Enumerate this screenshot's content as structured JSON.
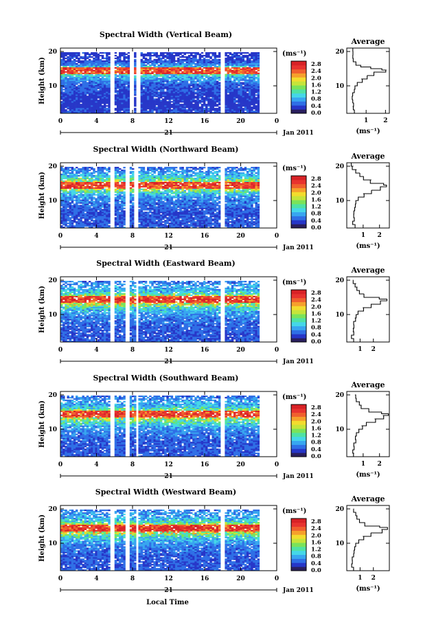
{
  "colors": {
    "scale": [
      "#2a1f5e",
      "#2636c8",
      "#2f6fe6",
      "#38a6f0",
      "#45d7e8",
      "#4fe2a4",
      "#7be35a",
      "#c6e43a",
      "#f3dc2e",
      "#f6a02c",
      "#f0602e",
      "#e8332f",
      "#d82226"
    ],
    "gap": "#ffffff",
    "axis": "#000000"
  },
  "chart_data": [
    {
      "type": "heatmap",
      "title": "Spectral Width (Vertical Beam)",
      "xlabel": "",
      "ylabel": "Height (km)",
      "x_ticks": [
        "0",
        "4",
        "8",
        "12",
        "16",
        "20",
        "0"
      ],
      "y_ticks": [
        "10",
        "20"
      ],
      "xlim": [
        0,
        24
      ],
      "ylim": [
        2,
        21
      ],
      "date_label": "Jan 2011",
      "day_label": "21",
      "colorbar": {
        "unit": "(ms⁻¹)",
        "ticks": [
          "2.8",
          "2.4",
          "2.0",
          "1.6",
          "1.2",
          "0.8",
          "0.4",
          "0.0"
        ],
        "range": [
          0,
          3.0
        ]
      },
      "gaps_hours": [
        [
          5.6,
          6.0
        ],
        [
          7.8,
          8.1
        ],
        [
          8.5,
          8.9
        ],
        [
          17.7,
          18.2
        ],
        [
          22.2,
          24
        ]
      ],
      "average": {
        "title": "Average",
        "xlabel": "(ms⁻¹)",
        "x_ticks": [
          "1",
          "2"
        ],
        "xlim": [
          0,
          2.2
        ],
        "y_ticks": [
          "10",
          "20"
        ],
        "profile": [
          [
            2,
            0.4
          ],
          [
            3,
            0.35
          ],
          [
            4,
            0.3
          ],
          [
            5,
            0.3
          ],
          [
            6,
            0.32
          ],
          [
            7,
            0.32
          ],
          [
            8,
            0.35
          ],
          [
            9,
            0.4
          ],
          [
            10,
            0.45
          ],
          [
            11,
            0.55
          ],
          [
            12,
            0.75
          ],
          [
            13,
            1.05
          ],
          [
            14,
            1.45
          ],
          [
            14.6,
            2.05
          ],
          [
            15,
            1.8
          ],
          [
            15.5,
            1.2
          ],
          [
            16,
            0.7
          ],
          [
            17,
            0.45
          ],
          [
            18,
            0.35
          ],
          [
            19,
            0.3
          ],
          [
            20,
            0.3
          ],
          [
            21,
            0.35
          ]
        ]
      }
    },
    {
      "type": "heatmap",
      "title": "Spectral Width (Northward Beam)",
      "xlabel": "",
      "ylabel": "Height (km)",
      "x_ticks": [
        "0",
        "4",
        "8",
        "12",
        "16",
        "20",
        "0"
      ],
      "y_ticks": [
        "10",
        "20"
      ],
      "xlim": [
        0,
        24
      ],
      "ylim": [
        2,
        21
      ],
      "date_label": "Jan 2011",
      "day_label": "21",
      "colorbar": {
        "unit": "(ms⁻¹)",
        "ticks": [
          "2.8",
          "2.4",
          "2.0",
          "1.6",
          "1.2",
          "0.8",
          "0.4",
          "0.0"
        ],
        "range": [
          0,
          3.0
        ]
      },
      "gaps_hours": [
        [
          5.6,
          6.0
        ],
        [
          7.3,
          7.7
        ],
        [
          8.2,
          8.6
        ],
        [
          17.7,
          18.2
        ],
        [
          22.2,
          24
        ]
      ],
      "average": {
        "title": "Average",
        "xlabel": "(ms⁻¹)",
        "x_ticks": [
          "1",
          "2"
        ],
        "xlim": [
          0,
          2.6
        ],
        "y_ticks": [
          "10",
          "20"
        ],
        "profile": [
          [
            2,
            0.5
          ],
          [
            3,
            0.45
          ],
          [
            4,
            0.4
          ],
          [
            5,
            0.45
          ],
          [
            6,
            0.4
          ],
          [
            7,
            0.45
          ],
          [
            8,
            0.5
          ],
          [
            9,
            0.55
          ],
          [
            10,
            0.6
          ],
          [
            11,
            0.7
          ],
          [
            12,
            1.0
          ],
          [
            13,
            1.5
          ],
          [
            14,
            2.1
          ],
          [
            14.5,
            2.45
          ],
          [
            15,
            2.2
          ],
          [
            16,
            1.5
          ],
          [
            17,
            1.0
          ],
          [
            18,
            0.8
          ],
          [
            19,
            0.6
          ],
          [
            20,
            0.4
          ],
          [
            21,
            0.3
          ]
        ]
      }
    },
    {
      "type": "heatmap",
      "title": "Spectral Width (Eastward Beam)",
      "xlabel": "",
      "ylabel": "Height (km)",
      "x_ticks": [
        "0",
        "4",
        "8",
        "12",
        "16",
        "20",
        "0"
      ],
      "y_ticks": [
        "10",
        "20"
      ],
      "xlim": [
        0,
        24
      ],
      "ylim": [
        2,
        21
      ],
      "date_label": "Jan 2011",
      "day_label": "21",
      "colorbar": {
        "unit": "(ms⁻¹)",
        "ticks": [
          "2.8",
          "2.4",
          "2.0",
          "1.6",
          "1.2",
          "0.8",
          "0.4",
          "0.0"
        ],
        "range": [
          0,
          3.0
        ]
      },
      "gaps_hours": [
        [
          5.6,
          6.0
        ],
        [
          7.3,
          7.7
        ],
        [
          8.3,
          8.7
        ],
        [
          17.7,
          18.2
        ],
        [
          22.2,
          24
        ]
      ],
      "average": {
        "title": "Average",
        "xlabel": "",
        "x_ticks": [
          "1",
          "2"
        ],
        "xlim": [
          0,
          3.2
        ],
        "y_ticks": [
          "10",
          "20"
        ],
        "profile": [
          [
            2,
            0.5
          ],
          [
            3,
            0.45
          ],
          [
            4,
            0.4
          ],
          [
            5,
            0.45
          ],
          [
            6,
            0.45
          ],
          [
            7,
            0.5
          ],
          [
            8,
            0.55
          ],
          [
            9,
            0.6
          ],
          [
            10,
            0.7
          ],
          [
            11,
            0.9
          ],
          [
            12,
            1.2
          ],
          [
            13,
            1.8
          ],
          [
            14,
            2.6
          ],
          [
            14.5,
            3.0
          ],
          [
            15,
            2.4
          ],
          [
            16,
            1.3
          ],
          [
            17,
            0.9
          ],
          [
            18,
            0.8
          ],
          [
            19,
            0.7
          ],
          [
            20,
            0.5
          ]
        ]
      }
    },
    {
      "type": "heatmap",
      "title": "Spectral Width (Southward Beam)",
      "xlabel": "",
      "ylabel": "Height (km)",
      "x_ticks": [
        "0",
        "4",
        "8",
        "12",
        "16",
        "20",
        "0"
      ],
      "y_ticks": [
        "10",
        "20"
      ],
      "xlim": [
        0,
        24
      ],
      "ylim": [
        2,
        21
      ],
      "date_label": "Jan 2011",
      "day_label": "21",
      "colorbar": {
        "unit": "(ms⁻¹)",
        "ticks": [
          "2.8",
          "2.4",
          "2.0",
          "1.6",
          "1.2",
          "0.8",
          "0.4",
          "0.0"
        ],
        "range": [
          0,
          3.0
        ]
      },
      "gaps_hours": [
        [
          5.6,
          6.0
        ],
        [
          7.3,
          7.7
        ],
        [
          8.3,
          8.7
        ],
        [
          17.7,
          18.2
        ],
        [
          22.2,
          24
        ]
      ],
      "average": {
        "title": "Average",
        "xlabel": "(ms⁻¹)",
        "x_ticks": [
          "1",
          "2"
        ],
        "xlim": [
          0,
          2.6
        ],
        "y_ticks": [
          "10",
          "20"
        ],
        "profile": [
          [
            2,
            0.5
          ],
          [
            3,
            0.45
          ],
          [
            4,
            0.4
          ],
          [
            5,
            0.45
          ],
          [
            6,
            0.45
          ],
          [
            7,
            0.5
          ],
          [
            8,
            0.55
          ],
          [
            9,
            0.6
          ],
          [
            10,
            0.7
          ],
          [
            11,
            0.9
          ],
          [
            12,
            1.2
          ],
          [
            13,
            1.7
          ],
          [
            14,
            2.2
          ],
          [
            14.5,
            2.5
          ],
          [
            15,
            2.1
          ],
          [
            16,
            1.3
          ],
          [
            17,
            0.9
          ],
          [
            18,
            0.8
          ],
          [
            19,
            0.6
          ],
          [
            20,
            0.5
          ]
        ]
      }
    },
    {
      "type": "heatmap",
      "title": "Spectral Width (Westward Beam)",
      "xlabel": "Local Time",
      "ylabel": "Height (km)",
      "x_ticks": [
        "0",
        "4",
        "8",
        "12",
        "16",
        "20",
        "0"
      ],
      "y_ticks": [
        "10",
        "20"
      ],
      "xlim": [
        0,
        24
      ],
      "ylim": [
        2,
        21
      ],
      "date_label": "Jan 2011",
      "day_label": "21",
      "colorbar": {
        "unit": "(ms⁻¹)",
        "ticks": [
          "2.8",
          "2.4",
          "2.0",
          "1.6",
          "1.2",
          "0.8",
          "0.4",
          "0.0"
        ],
        "range": [
          0,
          3.0
        ]
      },
      "gaps_hours": [
        [
          5.6,
          6.0
        ],
        [
          7.3,
          7.7
        ],
        [
          8.3,
          8.7
        ],
        [
          17.7,
          18.2
        ],
        [
          22.2,
          24
        ]
      ],
      "average": {
        "title": "Average",
        "xlabel": "(ms⁻¹)",
        "x_ticks": [
          "1",
          "2"
        ],
        "xlim": [
          0,
          3.2
        ],
        "y_ticks": [
          "10",
          "20"
        ],
        "profile": [
          [
            2,
            0.5
          ],
          [
            3,
            0.45
          ],
          [
            4,
            0.4
          ],
          [
            5,
            0.45
          ],
          [
            6,
            0.45
          ],
          [
            7,
            0.5
          ],
          [
            8,
            0.55
          ],
          [
            9,
            0.6
          ],
          [
            10,
            0.7
          ],
          [
            11,
            0.9
          ],
          [
            12,
            1.2
          ],
          [
            13,
            1.8
          ],
          [
            14,
            2.6
          ],
          [
            14.6,
            3.0
          ],
          [
            15,
            2.4
          ],
          [
            16,
            1.3
          ],
          [
            17,
            0.9
          ],
          [
            18,
            0.8
          ],
          [
            19,
            0.7
          ],
          [
            20,
            0.5
          ]
        ]
      }
    }
  ]
}
